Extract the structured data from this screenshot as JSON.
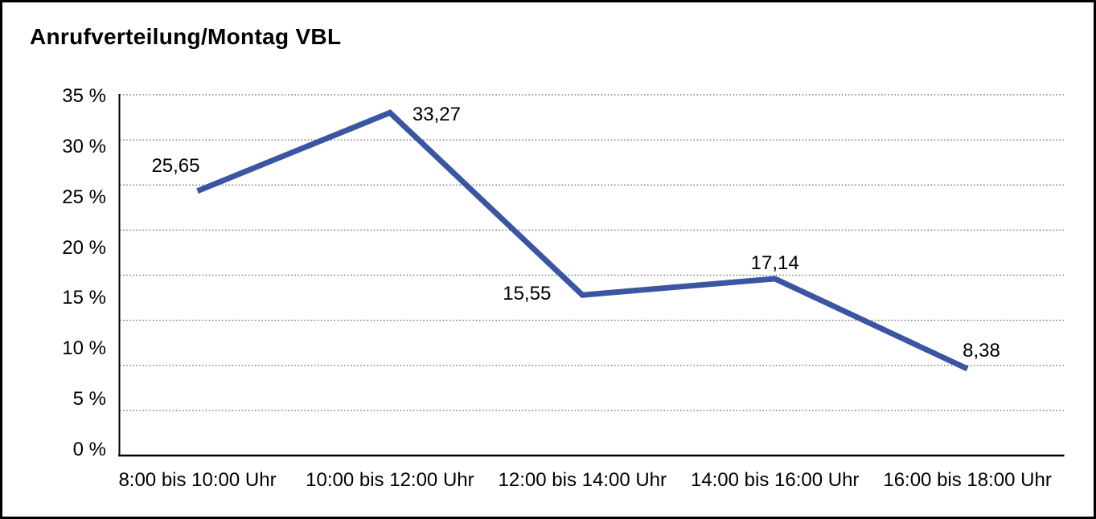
{
  "chart_data": {
    "type": "line",
    "title": "Anrufverteilung/Montag VBL",
    "categories": [
      "8:00 bis 10:00 Uhr",
      "10:00 bis 12:00 Uhr",
      "12:00 bis 14:00 Uhr",
      "14:00 bis 16:00 Uhr",
      "16:00 bis 18:00 Uhr"
    ],
    "values": [
      25.65,
      33.27,
      15.55,
      17.14,
      8.38
    ],
    "value_labels": [
      "25,65",
      "33,27",
      "15,55",
      "17,14",
      "8,38"
    ],
    "y_tick_labels": [
      "35 %",
      "30 %",
      "25 %",
      "20 %",
      "15 %",
      "10 %",
      "5 %",
      "0 %"
    ],
    "ylim": [
      0,
      35
    ],
    "xlabel": "",
    "ylabel": "",
    "legend": "none",
    "grid": "horizontal-dotted",
    "colors": {
      "line": "#3A56A3",
      "axis": "#000000",
      "grid_dots": "#606060",
      "text": "#000000",
      "background": "#FFFFFF",
      "border": "#000000"
    }
  }
}
